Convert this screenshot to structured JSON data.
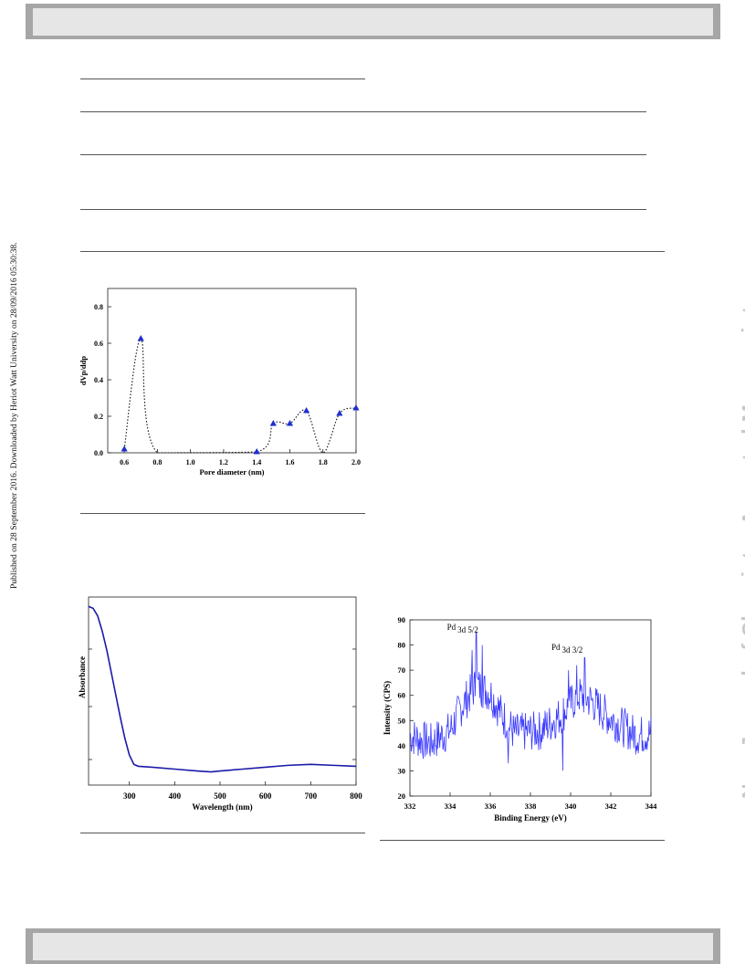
{
  "side_note": "Published on 28 September 2016. Downloaded by Heriot Watt University on 28/09/2016 05:30:38.",
  "watermark": "New Journal of Chemistry Accepted Manuscript",
  "chart_data": [
    {
      "type": "scatter",
      "xlabel": "Pore diameter (nm)",
      "ylabel": "dVp/ddp",
      "xlim": [
        0.5,
        2.0
      ],
      "ylim": [
        0.0,
        0.9
      ],
      "xticks": [
        "0.6",
        "0.8",
        "1.0",
        "1.2",
        "1.4",
        "1.6",
        "1.8",
        "2.0"
      ],
      "yticks": [
        "0.0",
        "0.2",
        "0.4",
        "0.6",
        "0.8"
      ],
      "points": [
        [
          0.6,
          0.02
        ],
        [
          0.7,
          0.625
        ],
        [
          1.4,
          0.005
        ],
        [
          1.5,
          0.16
        ],
        [
          1.6,
          0.16
        ],
        [
          1.7,
          0.23
        ],
        [
          1.9,
          0.215
        ],
        [
          2.0,
          0.245
        ]
      ],
      "curve": [
        [
          0.6,
          0.02
        ],
        [
          0.7,
          0.625
        ],
        [
          0.8,
          0.0
        ],
        [
          1.4,
          0.005
        ],
        [
          1.5,
          0.16
        ],
        [
          1.6,
          0.16
        ],
        [
          1.7,
          0.23
        ],
        [
          1.8,
          0.0
        ],
        [
          1.9,
          0.215
        ],
        [
          2.0,
          0.245
        ]
      ],
      "marker_color": "#1f2fcf"
    },
    {
      "type": "line",
      "xlabel": "Wavelength (nm)",
      "ylabel": "Absorbance",
      "xlim": [
        210,
        800
      ],
      "ylim": [
        0,
        1
      ],
      "xticks": [
        "300",
        "400",
        "500",
        "600",
        "700",
        "800"
      ],
      "x": [
        210,
        220,
        230,
        240,
        250,
        260,
        270,
        280,
        290,
        300,
        310,
        320,
        350,
        400,
        450,
        480,
        500,
        550,
        600,
        650,
        700,
        750,
        800
      ],
      "y": [
        0.95,
        0.94,
        0.9,
        0.82,
        0.72,
        0.6,
        0.48,
        0.36,
        0.25,
        0.16,
        0.11,
        0.1,
        0.095,
        0.085,
        0.075,
        0.07,
        0.075,
        0.085,
        0.095,
        0.105,
        0.11,
        0.105,
        0.1
      ],
      "line_color": "#1a1aa8"
    },
    {
      "type": "line",
      "xlabel": "Binding Energy (eV)",
      "ylabel": "Intensity (CPS)",
      "xlim": [
        332,
        344
      ],
      "ylim": [
        20,
        90
      ],
      "xticks": [
        "332",
        "334",
        "336",
        "338",
        "340",
        "342",
        "344"
      ],
      "yticks": [
        "20",
        "30",
        "40",
        "50",
        "60",
        "70",
        "80",
        "90"
      ],
      "annotations": [
        {
          "text": "Pd",
          "sub": "3d 5/2",
          "x": 335.3,
          "y": 86
        },
        {
          "text": "Pd",
          "sub": "3d 3/2",
          "x": 340.5,
          "y": 78
        }
      ],
      "envelope": [
        [
          332,
          44
        ],
        [
          333,
          41
        ],
        [
          334,
          46
        ],
        [
          334.6,
          56
        ],
        [
          335.3,
          64
        ],
        [
          336,
          61
        ],
        [
          336.6,
          52
        ],
        [
          337.2,
          45
        ],
        [
          338.5,
          46
        ],
        [
          339.5,
          52
        ],
        [
          340.4,
          60
        ],
        [
          341,
          58
        ],
        [
          341.8,
          52
        ],
        [
          342.5,
          48
        ],
        [
          343.3,
          44
        ],
        [
          344,
          45
        ]
      ],
      "spikes": [
        [
          335.3,
          85
        ],
        [
          335.6,
          80
        ],
        [
          335.1,
          78
        ],
        [
          340.7,
          75
        ],
        [
          340.3,
          72
        ],
        [
          339.9,
          70
        ],
        [
          339.6,
          30
        ],
        [
          336.9,
          33
        ]
      ],
      "line_color": "#3a3aff"
    }
  ]
}
